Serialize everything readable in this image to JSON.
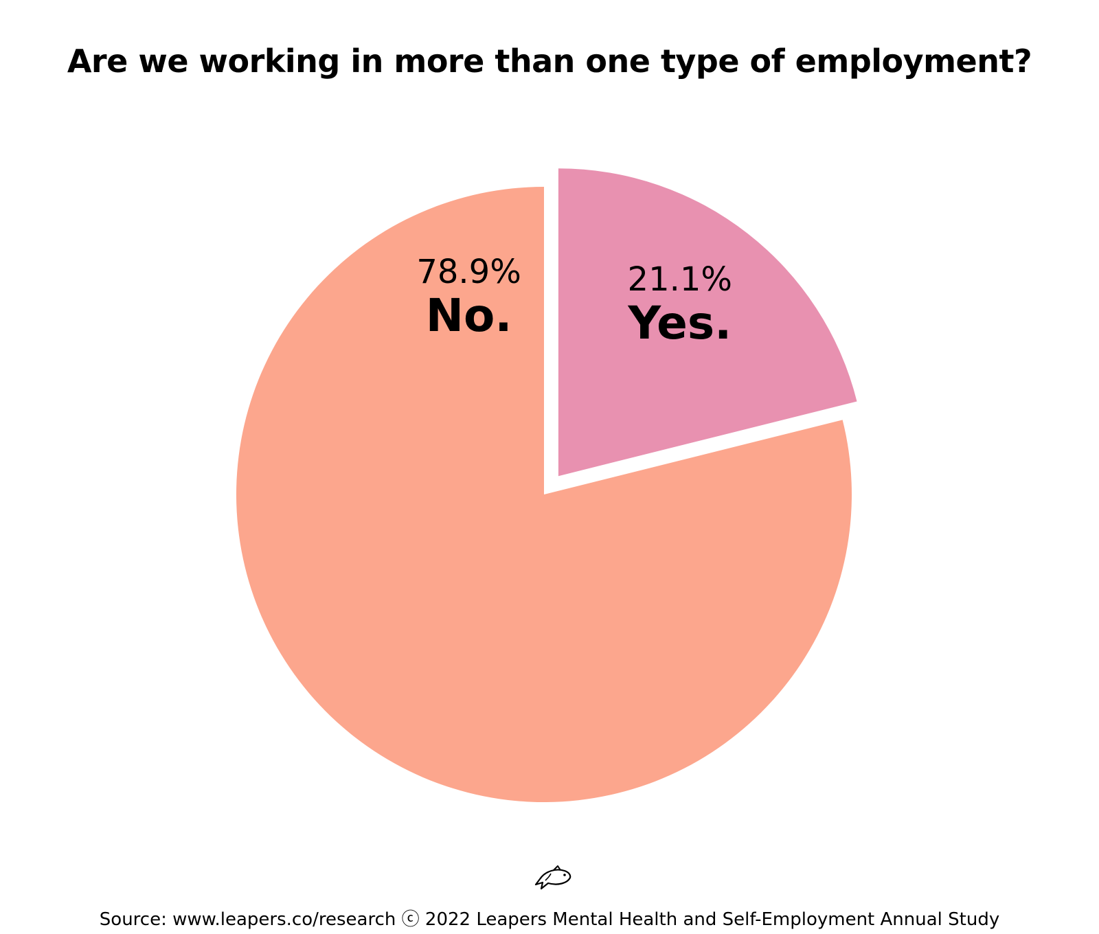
{
  "chart_data": {
    "type": "pie",
    "title": "Are we working in more than one type of employment?",
    "slices": [
      {
        "label": "Yes.",
        "value": 21.1,
        "value_label": "21.1%",
        "color": "#e891b0",
        "exploded": true
      },
      {
        "label": "No.",
        "value": 78.9,
        "value_label": "78.9%",
        "color": "#fca68d",
        "exploded": false
      }
    ],
    "start_angle": "12 o'clock",
    "direction": "clockwise"
  },
  "footer": {
    "icon": "fish-icon",
    "source": "Source: www.leapers.co/research ⓒ 2022 Leapers Mental Health and Self-Employment Annual Study"
  }
}
